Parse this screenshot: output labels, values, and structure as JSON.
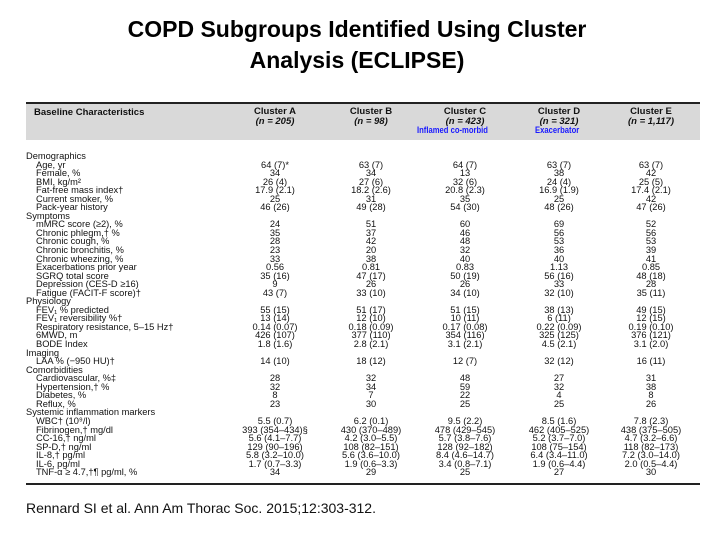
{
  "title_line1": "COPD Subgroups Identified Using Cluster",
  "title_line2": "Analysis (ECLIPSE)",
  "table": {
    "header_label": "Baseline Characteristics",
    "columns": [
      {
        "name": "Cluster A",
        "n": "(n = 205)",
        "tag": ""
      },
      {
        "name": "Cluster B",
        "n": "(n = 98)",
        "tag": ""
      },
      {
        "name": "Cluster C",
        "n": "(n = 423)",
        "tag": "Inflamed  co-morbid"
      },
      {
        "name": "Cluster D",
        "n": "(n = 321)",
        "tag": "Exacerbator"
      },
      {
        "name": "Cluster E",
        "n": "(n = 1,117)",
        "tag": ""
      }
    ],
    "tag_color": "#1a1aff",
    "sections": [
      {
        "label": "Demographics",
        "rows": [
          {
            "label": "Age, yr",
            "values": [
              "64 (7)*",
              "63 (7)",
              "64 (7)",
              "63 (7)",
              "63 (7)"
            ]
          },
          {
            "label": "Female, %",
            "values": [
              "34",
              "34",
              "13",
              "38",
              "42"
            ]
          },
          {
            "label": "BMI, kg/m²",
            "values": [
              "26 (4)",
              "27 (6)",
              "32 (6)",
              "24 (4)",
              "25 (5)"
            ]
          },
          {
            "label": "Fat-free mass index†",
            "values": [
              "17.9 (2.1)",
              "18.2 (2.6)",
              "20.8 (2.3)",
              "16.9 (1.9)",
              "17.4 (2.1)"
            ]
          },
          {
            "label": "Current smoker, %",
            "values": [
              "25",
              "31",
              "35",
              "25",
              "42"
            ]
          },
          {
            "label": "Pack-year history",
            "values": [
              "46 (26)",
              "49 (28)",
              "54 (30)",
              "48 (26)",
              "47 (26)"
            ]
          }
        ]
      },
      {
        "label": "Symptoms",
        "rows": [
          {
            "label": "mMRC score (≥2), %",
            "values": [
              "24",
              "51",
              "60",
              "69",
              "52"
            ]
          },
          {
            "label": "Chronic phlegm,† %",
            "values": [
              "35",
              "37",
              "46",
              "56",
              "56"
            ]
          },
          {
            "label": "Chronic cough, %",
            "values": [
              "28",
              "42",
              "48",
              "53",
              "53"
            ]
          },
          {
            "label": "Chronic bronchitis, %",
            "values": [
              "23",
              "20",
              "32",
              "36",
              "39"
            ]
          },
          {
            "label": "Chronic wheezing, %",
            "values": [
              "33",
              "38",
              "40",
              "40",
              "41"
            ]
          },
          {
            "label": "Exacerbations prior year",
            "values": [
              "0.56",
              "0.81",
              "0.83",
              "1.13",
              "0.85"
            ]
          },
          {
            "label": "SGRQ total score",
            "values": [
              "35 (16)",
              "47 (17)",
              "50 (19)",
              "56 (16)",
              "48 (18)"
            ]
          },
          {
            "label": "Depression (CES-D ≥16)",
            "values": [
              "9",
              "26",
              "26",
              "33",
              "28"
            ]
          },
          {
            "label": "Fatigue (FACIT-F score)†",
            "values": [
              "43 (7)",
              "33 (10)",
              "34 (10)",
              "32 (10)",
              "35 (11)"
            ]
          }
        ]
      },
      {
        "label": "Physiology",
        "rows": [
          {
            "label": "FEV₁ % predicted",
            "values": [
              "55 (15)",
              "51 (17)",
              "51 (15)",
              "38 (13)",
              "49 (15)"
            ]
          },
          {
            "label": "FEV₁ reversibility %†",
            "values": [
              "13 (14)",
              "12 (10)",
              "10 (11)",
              "6 (11)",
              "12 (15)"
            ]
          },
          {
            "label": "Respiratory resistance, 5–15 Hz†",
            "values": [
              "0.14 (0.07)",
              "0.18 (0.09)",
              "0.17 (0.08)",
              "0.22 (0.09)",
              "0.19 (0.10)"
            ]
          },
          {
            "label": "6MWD, m",
            "values": [
              "426 (107)",
              "377 (110)",
              "354 (116)",
              "325 (125)",
              "376 (121)"
            ]
          },
          {
            "label": "BODE Index",
            "values": [
              "1.8 (1.6)",
              "2.8 (2.1)",
              "3.1 (2.1)",
              "4.5 (2.1)",
              "3.1 (2.0)"
            ]
          }
        ]
      },
      {
        "label": "Imaging",
        "rows": [
          {
            "label": "LAA % (−950 HU)†",
            "values": [
              "14 (10)",
              "18 (12)",
              "12 (7)",
              "32 (12)",
              "16 (11)"
            ]
          }
        ]
      },
      {
        "label": "Comorbidities",
        "rows": [
          {
            "label": "Cardiovascular, %‡",
            "values": [
              "28",
              "32",
              "48",
              "27",
              "31"
            ]
          },
          {
            "label": "Hypertension,† %",
            "values": [
              "32",
              "34",
              "59",
              "32",
              "38"
            ]
          },
          {
            "label": "Diabetes, %",
            "values": [
              "8",
              "7",
              "22",
              "4",
              "8"
            ]
          },
          {
            "label": "Reflux, %",
            "values": [
              "23",
              "30",
              "25",
              "25",
              "26"
            ]
          }
        ]
      },
      {
        "label": "Systemic inflammation markers",
        "rows": [
          {
            "label": "WBC† (10⁹/l)",
            "values": [
              "5.5 (0.7)",
              "6.2 (0.1)",
              "9.5 (2.2)",
              "8.5 (1.6)",
              "7.8 (2.3)"
            ]
          },
          {
            "label": "Fibrinogen,† mg/dl",
            "values": [
              "393 (354–434)§",
              "430 (370–489)",
              "478 (429–545)",
              "462 (405–525)",
              "438 (375–505)"
            ]
          },
          {
            "label": "CC-16,† ng/ml",
            "values": [
              "5.6 (4.1–7.7)",
              "4.2 (3.0–5.5)",
              "5.7 (3.8–7.6)",
              "5.2 (3.7–7.0)",
              "4.7 (3.2–6.6)"
            ]
          },
          {
            "label": "SP-D,† ng/ml",
            "values": [
              "129 (90–196)",
              "108 (82–151)",
              "128 (92–182)",
              "108 (75–154)",
              "118 (82–173)"
            ]
          },
          {
            "label": "IL-8,† pg/ml",
            "values": [
              "5.8 (3.2–10.0)",
              "5.6 (3.6–10.0)",
              "8.4 (4.6–14.7)",
              "6.4 (3.4–11.0)",
              "7.2 (3.0–14.0)"
            ]
          },
          {
            "label": "IL-6, pg/ml",
            "values": [
              "1.7 (0.7–3.3)",
              "1.9 (0.6–3.3)",
              "3.4 (0.8–7.1)",
              "1.9 (0.6–4.4)",
              "2.0 (0.5–4.4)"
            ]
          },
          {
            "label": "TNF-α ≥ 4.7,†¶ pg/ml, %",
            "values": [
              "34",
              "29",
              "25",
              "27",
              "30"
            ]
          }
        ]
      }
    ]
  },
  "citation": "Rennard SI et al. Ann Am Thorac Soc. 2015;12:303-312."
}
